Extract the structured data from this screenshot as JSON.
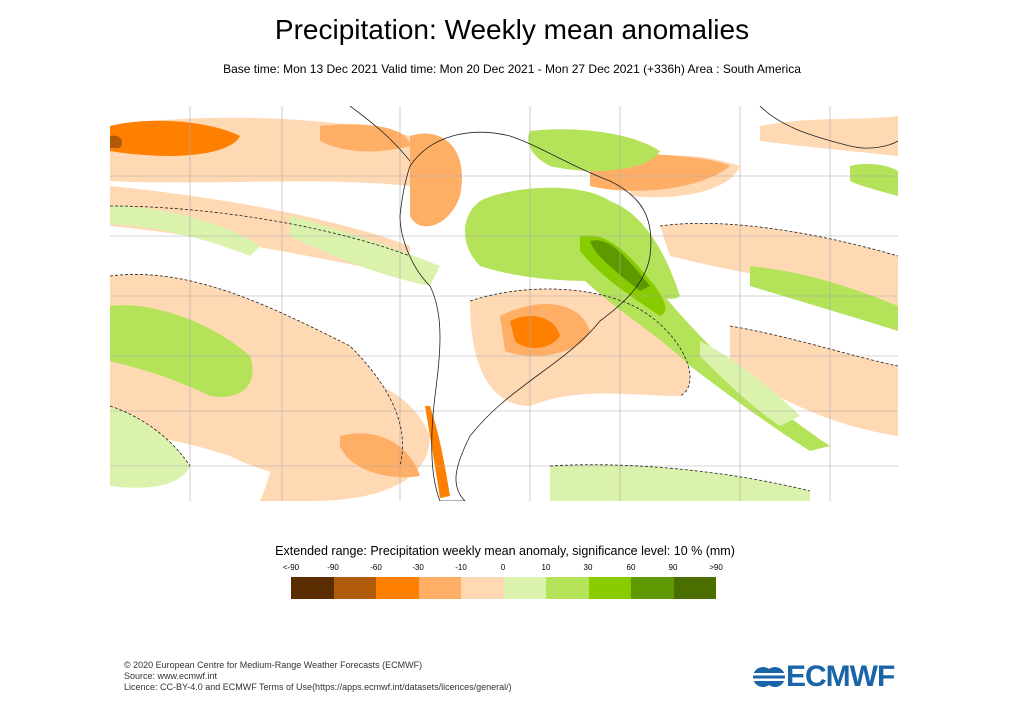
{
  "title": "Precipitation: Weekly mean anomalies",
  "subtitle": "Base time: Mon 13 Dec 2021 Valid time: Mon 20 Dec 2021 - Mon 27 Dec 2021 (+336h) Area : South America",
  "legend": {
    "title": "Extended range: Precipitation weekly mean anomaly, significance level: 10 % (mm)",
    "labels": [
      "<-90",
      "-90",
      "-60",
      "-30",
      "-10",
      "0",
      "10",
      "30",
      "60",
      "90",
      ">90"
    ],
    "colors": [
      "#5a2d00",
      "#b05a0a",
      "#ff8000",
      "#ffae66",
      "#ffd8b4",
      "#dbf2ad",
      "#b4e35a",
      "#88cc00",
      "#5e9900",
      "#4a6e00"
    ]
  },
  "footer": {
    "line1": "© 2020 European Centre for Medium-Range Weather Forecasts (ECMWF)",
    "line2": "Source: www.ecmwf.int",
    "line3": "Licence: CC-BY-4.0 and ECMWF Terms of Use(https://apps.ecmwf.int/datasets/licences/general/)"
  },
  "logo": {
    "text": "ECMWF",
    "color": "#1a64a8"
  }
}
